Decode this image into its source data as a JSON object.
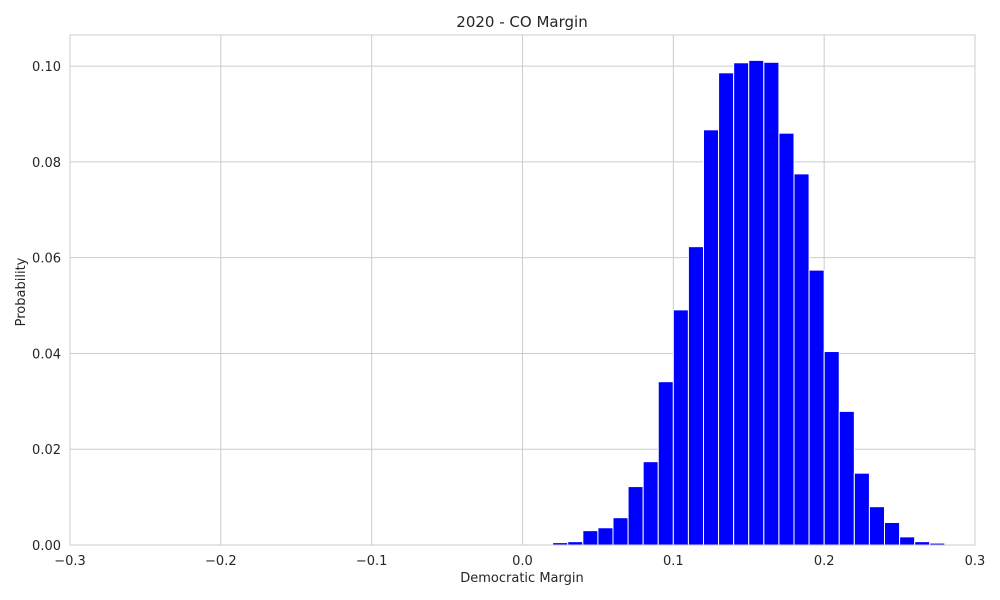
{
  "chart_data": {
    "type": "bar",
    "title": "2020 - CO Margin",
    "xlabel": "Democratic Margin",
    "ylabel": "Probability",
    "xlim": [
      -0.3,
      0.3
    ],
    "ylim": [
      0,
      0.1065
    ],
    "xticks": [
      -0.3,
      -0.2,
      -0.1,
      0.0,
      0.1,
      0.2,
      0.3
    ],
    "xtick_labels": [
      "−0.3",
      "−0.2",
      "−0.1",
      "0.0",
      "0.1",
      "0.2",
      "0.3"
    ],
    "yticks": [
      0,
      0.02,
      0.04,
      0.06,
      0.08,
      0.1
    ],
    "ytick_labels": [
      "0.00",
      "0.02",
      "0.04",
      "0.06",
      "0.08",
      "0.10"
    ],
    "grid": true,
    "bar_color": "#0000ff",
    "bin_width": 0.01,
    "bins": [
      {
        "x0": 0.02,
        "value": 0.0005
      },
      {
        "x0": 0.03,
        "value": 0.0007
      },
      {
        "x0": 0.04,
        "value": 0.003
      },
      {
        "x0": 0.05,
        "value": 0.0036
      },
      {
        "x0": 0.06,
        "value": 0.0057
      },
      {
        "x0": 0.07,
        "value": 0.0122
      },
      {
        "x0": 0.08,
        "value": 0.0174
      },
      {
        "x0": 0.09,
        "value": 0.0341
      },
      {
        "x0": 0.1,
        "value": 0.0491
      },
      {
        "x0": 0.11,
        "value": 0.0623
      },
      {
        "x0": 0.12,
        "value": 0.0867
      },
      {
        "x0": 0.13,
        "value": 0.0986
      },
      {
        "x0": 0.14,
        "value": 0.1007
      },
      {
        "x0": 0.15,
        "value": 0.1012
      },
      {
        "x0": 0.16,
        "value": 0.1008
      },
      {
        "x0": 0.17,
        "value": 0.086
      },
      {
        "x0": 0.18,
        "value": 0.0775
      },
      {
        "x0": 0.19,
        "value": 0.0574
      },
      {
        "x0": 0.2,
        "value": 0.0404
      },
      {
        "x0": 0.21,
        "value": 0.0279
      },
      {
        "x0": 0.22,
        "value": 0.015
      },
      {
        "x0": 0.23,
        "value": 0.008
      },
      {
        "x0": 0.24,
        "value": 0.0047
      },
      {
        "x0": 0.25,
        "value": 0.0017
      },
      {
        "x0": 0.26,
        "value": 0.0007
      },
      {
        "x0": 0.27,
        "value": 0.0004
      }
    ]
  }
}
